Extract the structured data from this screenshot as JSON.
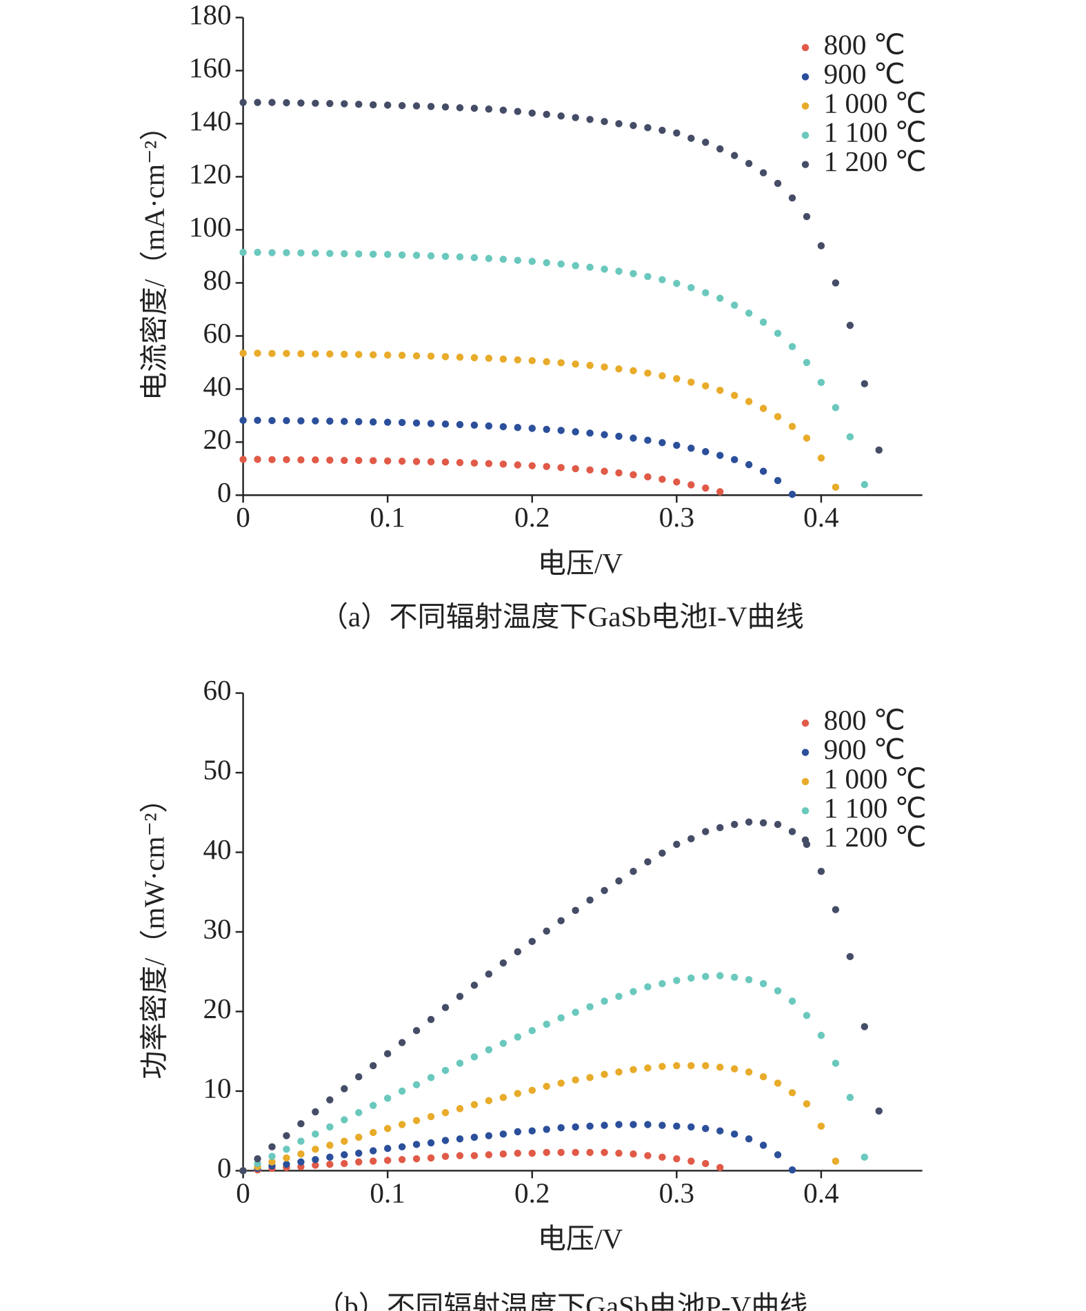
{
  "chart_data": [
    {
      "type": "scatter",
      "caption": "（a）不同辐射温度下GaSb电池I-V曲线",
      "x_label": "电压/V",
      "y_label": "电流密度/（mA·cm⁻²）",
      "x": [
        0,
        0.01,
        0.02,
        0.03,
        0.04,
        0.05,
        0.06,
        0.07,
        0.08,
        0.09,
        0.1,
        0.11,
        0.12,
        0.13,
        0.14,
        0.15,
        0.16,
        0.17,
        0.18,
        0.19,
        0.2,
        0.21,
        0.22,
        0.23,
        0.24,
        0.25,
        0.26,
        0.27,
        0.28,
        0.29,
        0.3,
        0.31,
        0.32,
        0.33,
        0.34,
        0.35,
        0.36,
        0.37,
        0.38,
        0.39,
        0.4,
        0.41,
        0.42,
        0.43,
        0.44
      ],
      "xlim": [
        0,
        0.47
      ],
      "xticks": [
        0,
        0.1,
        0.2,
        0.3,
        0.4
      ],
      "ylim": [
        0,
        180
      ],
      "yticks": [
        0,
        20,
        40,
        60,
        80,
        100,
        120,
        140,
        160,
        180
      ],
      "legend": "upper right",
      "series": [
        {
          "name": "800 ℃",
          "color": "#e05a47",
          "values": [
            13.5,
            13.5,
            13.4,
            13.4,
            13.3,
            13.3,
            13.2,
            13.1,
            13.1,
            13,
            12.9,
            12.8,
            12.7,
            12.6,
            12.5,
            12.3,
            12.1,
            11.9,
            11.7,
            11.4,
            11.1,
            10.8,
            10.4,
            10,
            9.5,
            9,
            8.4,
            7.7,
            6.9,
            6,
            5,
            3.9,
            2.7,
            1.3,
            null,
            null,
            null,
            null,
            null,
            null,
            null,
            null,
            null,
            null,
            null
          ]
        },
        {
          "name": "900 ℃",
          "color": "#2b4f9a",
          "values": [
            28.2,
            28.2,
            28.1,
            28.1,
            28,
            28,
            27.9,
            27.8,
            27.7,
            27.6,
            27.5,
            27.4,
            27.2,
            27,
            26.8,
            26.6,
            26.4,
            26.1,
            25.8,
            25.5,
            25.2,
            24.8,
            24.4,
            23.9,
            23.4,
            22.8,
            22.2,
            21.5,
            20.7,
            19.8,
            18.8,
            17.7,
            16.4,
            15,
            13.4,
            11.5,
            9,
            5.5,
            0.3,
            null,
            null,
            null,
            null,
            null,
            null
          ]
        },
        {
          "name": "1 000 ℃",
          "color": "#e8ab2a",
          "values": [
            53.5,
            53.5,
            53.4,
            53.4,
            53.3,
            53.2,
            53.2,
            53.1,
            53,
            52.9,
            52.8,
            52.7,
            52.5,
            52.4,
            52.2,
            52,
            51.8,
            51.6,
            51.3,
            51,
            50.7,
            50.3,
            49.9,
            49.4,
            48.9,
            48.3,
            47.6,
            46.9,
            46,
            45,
            43.9,
            42.6,
            41.2,
            39.5,
            37.6,
            35.3,
            32.7,
            29.6,
            25.9,
            21.5,
            14,
            3,
            null,
            null,
            null
          ]
        },
        {
          "name": "1 100 ℃",
          "color": "#6ac8bd",
          "values": [
            91.5,
            91.5,
            91.4,
            91.4,
            91.3,
            91.2,
            91.1,
            91,
            90.9,
            90.8,
            90.7,
            90.5,
            90.4,
            90.2,
            90,
            89.8,
            89.5,
            89.2,
            88.9,
            88.5,
            88.1,
            87.6,
            87.1,
            86.5,
            85.9,
            85.2,
            84.4,
            83.5,
            82.4,
            81.2,
            79.8,
            78.2,
            76.3,
            74.2,
            71.6,
            68.6,
            65.2,
            61,
            56,
            50,
            42.5,
            33,
            22,
            4,
            null
          ]
        },
        {
          "name": "1 200 ℃",
          "color": "#454c66",
          "values": [
            148,
            148,
            148,
            147.9,
            147.8,
            147.7,
            147.6,
            147.5,
            147.3,
            147.1,
            147,
            146.8,
            146.7,
            146.5,
            146.3,
            146,
            145.8,
            145.5,
            145.1,
            144.6,
            144,
            143.5,
            142.9,
            142.3,
            141.6,
            140.8,
            140,
            139.3,
            138.5,
            137.5,
            136.5,
            134.5,
            133,
            130.5,
            128,
            125,
            121.5,
            117.5,
            112,
            105,
            94,
            80,
            64,
            42,
            17
          ]
        }
      ]
    },
    {
      "type": "scatter",
      "caption": "（b）不同辐射温度下GaSb电池P-V曲线",
      "x_label": "电压/V",
      "y_label": "功率密度/（mW·cm⁻²）",
      "x": [
        0,
        0.01,
        0.02,
        0.03,
        0.04,
        0.05,
        0.06,
        0.07,
        0.08,
        0.09,
        0.1,
        0.11,
        0.12,
        0.13,
        0.14,
        0.15,
        0.16,
        0.17,
        0.18,
        0.19,
        0.2,
        0.21,
        0.22,
        0.23,
        0.24,
        0.25,
        0.26,
        0.27,
        0.28,
        0.29,
        0.3,
        0.31,
        0.32,
        0.33,
        0.34,
        0.35,
        0.36,
        0.37,
        0.38,
        0.39,
        0.4,
        0.41,
        0.42,
        0.43,
        0.44
      ],
      "xlim": [
        0,
        0.47
      ],
      "xticks": [
        0,
        0.1,
        0.2,
        0.3,
        0.4
      ],
      "ylim": [
        0,
        60
      ],
      "yticks": [
        0,
        10,
        20,
        30,
        40,
        50,
        60
      ],
      "legend": "upper right",
      "series": [
        {
          "name": "800 ℃",
          "color": "#e05a47",
          "values": [
            0,
            0.1,
            0.3,
            0.4,
            0.5,
            0.7,
            0.8,
            0.9,
            1.1,
            1.2,
            1.3,
            1.4,
            1.5,
            1.6,
            1.8,
            1.9,
            1.9,
            2,
            2.1,
            2.2,
            2.2,
            2.3,
            2.3,
            2.3,
            2.3,
            2.3,
            2.2,
            2.1,
            1.9,
            1.7,
            1.5,
            1.2,
            0.9,
            0.4,
            null,
            null,
            null,
            null,
            null,
            null,
            null,
            null,
            null,
            null,
            null
          ]
        },
        {
          "name": "900 ℃",
          "color": "#2b4f9a",
          "values": [
            0,
            0.3,
            0.6,
            0.8,
            1.1,
            1.4,
            1.7,
            2,
            2.2,
            2.5,
            2.8,
            3,
            3.3,
            3.5,
            3.8,
            4,
            4.2,
            4.4,
            4.6,
            4.9,
            5,
            5.2,
            5.4,
            5.5,
            5.6,
            5.7,
            5.8,
            5.8,
            5.8,
            5.7,
            5.6,
            5.5,
            5.3,
            5,
            4.6,
            4,
            3.2,
            2,
            0.1,
            null,
            null,
            null,
            null,
            null,
            null
          ]
        },
        {
          "name": "1 000 ℃",
          "color": "#e8ab2a",
          "values": [
            0,
            0.5,
            1.1,
            1.6,
            2.1,
            2.7,
            3.2,
            3.7,
            4.2,
            4.8,
            5.3,
            5.8,
            6.3,
            6.8,
            7.3,
            7.8,
            8.3,
            8.8,
            9.2,
            9.7,
            10.1,
            10.6,
            11,
            11.4,
            11.7,
            12.1,
            12.4,
            12.7,
            12.9,
            13.1,
            13.2,
            13.2,
            13.2,
            13,
            12.8,
            12.4,
            11.8,
            11,
            9.8,
            8.4,
            5.6,
            1.2,
            null,
            null,
            null
          ]
        },
        {
          "name": "1 100 ℃",
          "color": "#6ac8bd",
          "values": [
            0,
            0.9,
            1.8,
            2.7,
            3.7,
            4.6,
            5.5,
            6.4,
            7.3,
            8.2,
            9.1,
            10,
            10.8,
            11.7,
            12.6,
            13.5,
            14.3,
            15.2,
            16,
            16.8,
            17.6,
            18.4,
            19.2,
            19.9,
            20.6,
            21.3,
            21.9,
            22.5,
            23.1,
            23.5,
            23.9,
            24.2,
            24.4,
            24.5,
            24.3,
            24,
            23.5,
            22.6,
            21.3,
            19.5,
            17,
            13.5,
            9.2,
            1.7,
            null
          ]
        },
        {
          "name": "1 200 ℃",
          "color": "#454c66",
          "values": [
            0,
            1.5,
            3,
            4.4,
            5.9,
            7.4,
            8.9,
            10.3,
            11.8,
            13.2,
            14.7,
            16.1,
            17.6,
            19,
            20.5,
            21.9,
            23.3,
            24.7,
            26.1,
            27.5,
            28.8,
            30.1,
            31.4,
            32.7,
            34,
            35.2,
            36.4,
            37.6,
            38.8,
            39.9,
            41,
            41.7,
            42.6,
            43.1,
            43.5,
            43.8,
            43.7,
            43.5,
            42.6,
            41,
            37.6,
            32.8,
            26.9,
            18.1,
            7.5
          ]
        }
      ]
    }
  ]
}
